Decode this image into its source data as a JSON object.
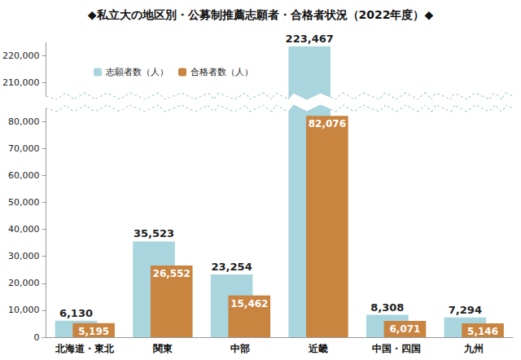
{
  "chart_data": {
    "type": "bar",
    "title": "◆私立大の地区別・公募制推薦志願者・合格者状況（2022年度）◆",
    "categories": [
      "北海道・東北",
      "関東",
      "中部",
      "近畿",
      "中国・四国",
      "九州"
    ],
    "series": [
      {
        "name": "志願者数（人）",
        "color": "#a8d5de",
        "values": [
          6130,
          35523,
          23254,
          223467,
          8308,
          7294
        ],
        "value_labels": [
          "6,130",
          "35,523",
          "23,254",
          "223,467",
          "8,308",
          "7,294"
        ]
      },
      {
        "name": "合格者数（人）",
        "color": "#c98440",
        "values": [
          5195,
          26552,
          15462,
          82076,
          6071,
          5146
        ],
        "value_labels": [
          "5,195",
          "26,552",
          "15,462",
          "82,076",
          "6,071",
          "5,146"
        ]
      }
    ],
    "ylim": [
      0,
      225000
    ],
    "ybreak": [
      85000,
      205000
    ],
    "yticks": [
      0,
      {
        "value": 10000,
        "label": "10,000"
      },
      {
        "value": 20000,
        "label": "20,000"
      },
      {
        "value": 30000,
        "label": "30,000"
      },
      {
        "value": 40000,
        "label": "40,000"
      },
      {
        "value": 50000,
        "label": "50,000"
      },
      {
        "value": 60000,
        "label": "60,000"
      },
      {
        "value": 70000,
        "label": "70,000"
      },
      {
        "value": 80000,
        "label": "80,000"
      },
      {
        "value": 210000,
        "label": "210,000"
      },
      {
        "value": 220000,
        "label": "220,000"
      }
    ],
    "grid": false,
    "legend": "upper left",
    "data_labels": true
  }
}
